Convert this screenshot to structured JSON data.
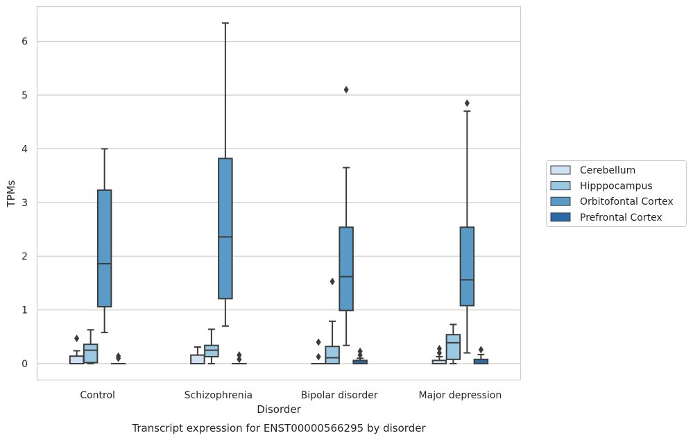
{
  "chart_data": {
    "type": "boxplot",
    "caption": "Transcript expression for ENST00000566295 by disorder",
    "xlabel": "Disorder",
    "ylabel": "TPMs",
    "ylim": [
      -0.3,
      6.65
    ],
    "yticks": [
      0,
      1,
      2,
      3,
      4,
      5,
      6
    ],
    "grid": "horizontal",
    "legend_position": "right",
    "categories": [
      "Control",
      "Schizophrenia",
      "Bipolar disorder",
      "Major depression"
    ],
    "series": [
      {
        "name": "Cerebellum",
        "color": "#d0e1f2",
        "boxes": [
          {
            "whislo": 0.0,
            "q1": 0.0,
            "med": 0.0,
            "q3": 0.14,
            "whishi": 0.24,
            "fliers": [
              0.47
            ]
          },
          {
            "whislo": 0.0,
            "q1": 0.0,
            "med": 0.0,
            "q3": 0.16,
            "whishi": 0.31,
            "fliers": []
          },
          {
            "whislo": 0.0,
            "q1": 0.0,
            "med": 0.0,
            "q3": 0.0,
            "whishi": 0.0,
            "fliers": [
              0.13,
              0.4
            ]
          },
          {
            "whislo": 0.0,
            "q1": 0.0,
            "med": 0.0,
            "q3": 0.06,
            "whishi": 0.13,
            "fliers": [
              0.2,
              0.28
            ]
          }
        ]
      },
      {
        "name": "Hipppocampus",
        "color": "#9ac8e0",
        "boxes": [
          {
            "whislo": 0.0,
            "q1": 0.02,
            "med": 0.25,
            "q3": 0.36,
            "whishi": 0.63,
            "fliers": []
          },
          {
            "whislo": 0.0,
            "q1": 0.13,
            "med": 0.25,
            "q3": 0.34,
            "whishi": 0.64,
            "fliers": []
          },
          {
            "whislo": 0.0,
            "q1": 0.0,
            "med": 0.11,
            "q3": 0.32,
            "whishi": 0.79,
            "fliers": [
              1.53
            ]
          },
          {
            "whislo": 0.0,
            "q1": 0.08,
            "med": 0.39,
            "q3": 0.54,
            "whishi": 0.73,
            "fliers": []
          }
        ]
      },
      {
        "name": "Orbitofontal Cortex",
        "color": "#5a9ac7",
        "boxes": [
          {
            "whislo": 0.58,
            "q1": 1.06,
            "med": 1.86,
            "q3": 3.23,
            "whishi": 4.0,
            "fliers": []
          },
          {
            "whislo": 0.7,
            "q1": 1.21,
            "med": 2.36,
            "q3": 3.82,
            "whishi": 6.34,
            "fliers": []
          },
          {
            "whislo": 0.34,
            "q1": 0.99,
            "med": 1.62,
            "q3": 2.54,
            "whishi": 3.65,
            "fliers": [
              5.1
            ]
          },
          {
            "whislo": 0.2,
            "q1": 1.08,
            "med": 1.56,
            "q3": 2.54,
            "whishi": 4.7,
            "fliers": [
              4.85
            ]
          }
        ]
      },
      {
        "name": "Prefrontal Cortex",
        "color": "#2b6aa8",
        "boxes": [
          {
            "whislo": 0.0,
            "q1": 0.0,
            "med": 0.0,
            "q3": 0.0,
            "whishi": 0.0,
            "fliers": [
              0.1,
              0.14
            ]
          },
          {
            "whislo": 0.0,
            "q1": 0.0,
            "med": 0.0,
            "q3": 0.0,
            "whishi": 0.0,
            "fliers": [
              0.08,
              0.16
            ]
          },
          {
            "whislo": 0.0,
            "q1": 0.0,
            "med": 0.0,
            "q3": 0.06,
            "whishi": 0.1,
            "fliers": [
              0.16,
              0.23
            ]
          },
          {
            "whislo": 0.0,
            "q1": 0.0,
            "med": 0.0,
            "q3": 0.08,
            "whishi": 0.17,
            "fliers": [
              0.26
            ]
          }
        ]
      }
    ]
  }
}
